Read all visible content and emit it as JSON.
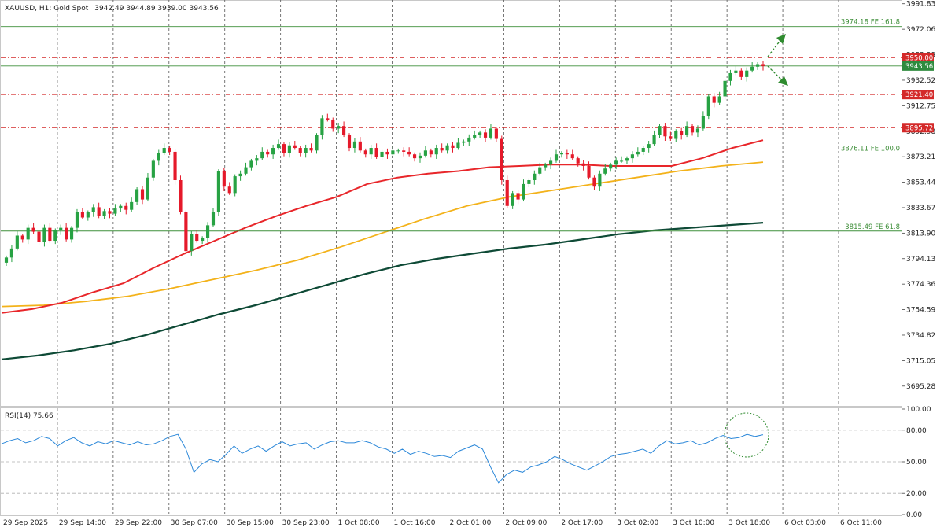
{
  "header": {
    "symbol": "XAUUSD, H1:  Gold Spot",
    "ohlc": "3942.49 3944.89 3939.00 3943.56"
  },
  "rsi_label": "RSI(14) 75.66",
  "colors": {
    "bull": "#27a243",
    "bear": "#e5192a",
    "ma_fast": "#e8262a",
    "ma_mid": "#f3b21a",
    "ma_slow": "#0e4a36",
    "rsi": "#2c88d9",
    "fib": "#3f8f3a",
    "resistance": "#d42a2a"
  },
  "chart_data": [
    {
      "type": "candlestick",
      "symbol": "XAUUSD",
      "timeframe": "H1",
      "ylim": [
        3680.5,
        3993.5
      ],
      "y_ticks": [
        "3991.83",
        "3972.06",
        "3952.29",
        "3932.52",
        "3912.75",
        "3892.98",
        "3873.21",
        "3853.44",
        "3833.67",
        "3813.90",
        "3794.13",
        "3774.36",
        "3754.59",
        "3734.82",
        "3715.05",
        "3695.28"
      ],
      "x_ticks": [
        "29 Sep 2025",
        "29 Sep 14:00",
        "29 Sep 22:00",
        "30 Sep 07:00",
        "30 Sep 15:00",
        "30 Sep 23:00",
        "1 Oct 08:00",
        "1 Oct 16:00",
        "2 Oct 01:00",
        "2 Oct 09:00",
        "2 Oct 17:00",
        "3 Oct 02:00",
        "3 Oct 10:00",
        "3 Oct 18:00",
        "6 Oct 03:00",
        "6 Oct 11:00"
      ],
      "close_series": [
        3795,
        3802,
        3812,
        3809,
        3818,
        3815,
        3807,
        3818,
        3808,
        3816,
        3818,
        3809,
        3818,
        3830,
        3826,
        3830,
        3834,
        3827,
        3831,
        3829,
        3833,
        3835,
        3832,
        3838,
        3848,
        3840,
        3857,
        3870,
        3876,
        3880,
        3877,
        3855,
        3830,
        3800,
        3813,
        3808,
        3810,
        3820,
        3830,
        3862,
        3850,
        3845,
        3858,
        3860,
        3865,
        3870,
        3872,
        3877,
        3875,
        3880,
        3883,
        3876,
        3882,
        3880,
        3876,
        3880,
        3878,
        3890,
        3903,
        3902,
        3895,
        3897,
        3890,
        3880,
        3885,
        3878,
        3875,
        3880,
        3873,
        3877,
        3875,
        3878,
        3878,
        3877,
        3875,
        3872,
        3874,
        3878,
        3875,
        3880,
        3878,
        3882,
        3880,
        3884,
        3885,
        3888,
        3890,
        3892,
        3888,
        3895,
        3887,
        3855,
        3835,
        3845,
        3840,
        3852,
        3855,
        3860,
        3865,
        3867,
        3870,
        3875,
        3876,
        3875,
        3872,
        3868,
        3866,
        3857,
        3850,
        3860,
        3864,
        3867,
        3870,
        3870,
        3872,
        3875,
        3877,
        3880,
        3883,
        3890,
        3897,
        3889,
        3887,
        3893,
        3890,
        3897,
        3892,
        3895,
        3905,
        3920,
        3915,
        3920,
        3932,
        3938,
        3940,
        3935,
        3940,
        3943,
        3945,
        3943.56
      ],
      "ma_fast_series": [
        3752,
        3755,
        3760,
        3768,
        3775,
        3787,
        3798,
        3808,
        3818,
        3827,
        3835,
        3842,
        3852,
        3857,
        3860,
        3862,
        3865,
        3866,
        3867,
        3867,
        3866,
        3866,
        3866,
        3872,
        3880,
        3886
      ],
      "ma_mid_series": [
        3757,
        3758,
        3761,
        3765,
        3771,
        3778,
        3785,
        3793,
        3803,
        3814,
        3825,
        3835,
        3842,
        3847,
        3852,
        3857,
        3862,
        3866,
        3869
      ],
      "ma_slow_series": [
        3716,
        3719,
        3723,
        3728,
        3735,
        3743,
        3751,
        3758,
        3766,
        3774,
        3782,
        3789,
        3794,
        3798,
        3802,
        3805,
        3809,
        3813,
        3816,
        3818,
        3820,
        3822
      ],
      "levels": [
        {
          "price": 3974.18,
          "label": "3974.18 FE 161.8",
          "kind": "fib"
        },
        {
          "price": 3950.0,
          "label": "3950.00",
          "kind": "resistance"
        },
        {
          "price": 3921.4,
          "label": "3921.40",
          "kind": "resistance"
        },
        {
          "price": 3895.72,
          "label": "3895.72",
          "kind": "resistance"
        },
        {
          "price": 3876.11,
          "label": "3876.11 FE 100.0",
          "kind": "fib"
        },
        {
          "price": 3815.49,
          "label": "3815.49 FE 61.8",
          "kind": "fib"
        }
      ],
      "current_price": {
        "price": 3943.56,
        "label": "3943.56"
      },
      "annotations": [
        "up-arrow",
        "down-arrow"
      ]
    },
    {
      "type": "line",
      "name": "RSI(14)",
      "value": 75.66,
      "ylim": [
        0,
        100
      ],
      "y_ticks": [
        "100.00",
        "80.00",
        "50.00",
        "20.00",
        "0.00"
      ],
      "levels": [
        80,
        50,
        20
      ],
      "series": [
        67,
        70,
        72,
        68,
        70,
        74,
        72,
        65,
        70,
        73,
        68,
        65,
        69,
        67,
        70,
        68,
        66,
        69,
        66,
        67,
        70,
        74,
        76,
        62,
        40,
        48,
        52,
        50,
        57,
        65,
        58,
        62,
        65,
        60,
        65,
        69,
        65,
        67,
        68,
        62,
        66,
        69,
        70,
        68,
        68,
        70,
        68,
        64,
        62,
        58,
        62,
        57,
        60,
        58,
        55,
        56,
        54,
        60,
        63,
        66,
        62,
        45,
        30,
        38,
        42,
        40,
        45,
        47,
        50,
        55,
        52,
        48,
        45,
        42,
        46,
        50,
        55,
        57,
        58,
        60,
        62,
        58,
        65,
        70,
        67,
        68,
        70,
        66,
        68,
        72,
        75,
        72,
        73,
        76,
        74,
        75.66
      ],
      "annotations": [
        "overbought-circle"
      ]
    }
  ]
}
